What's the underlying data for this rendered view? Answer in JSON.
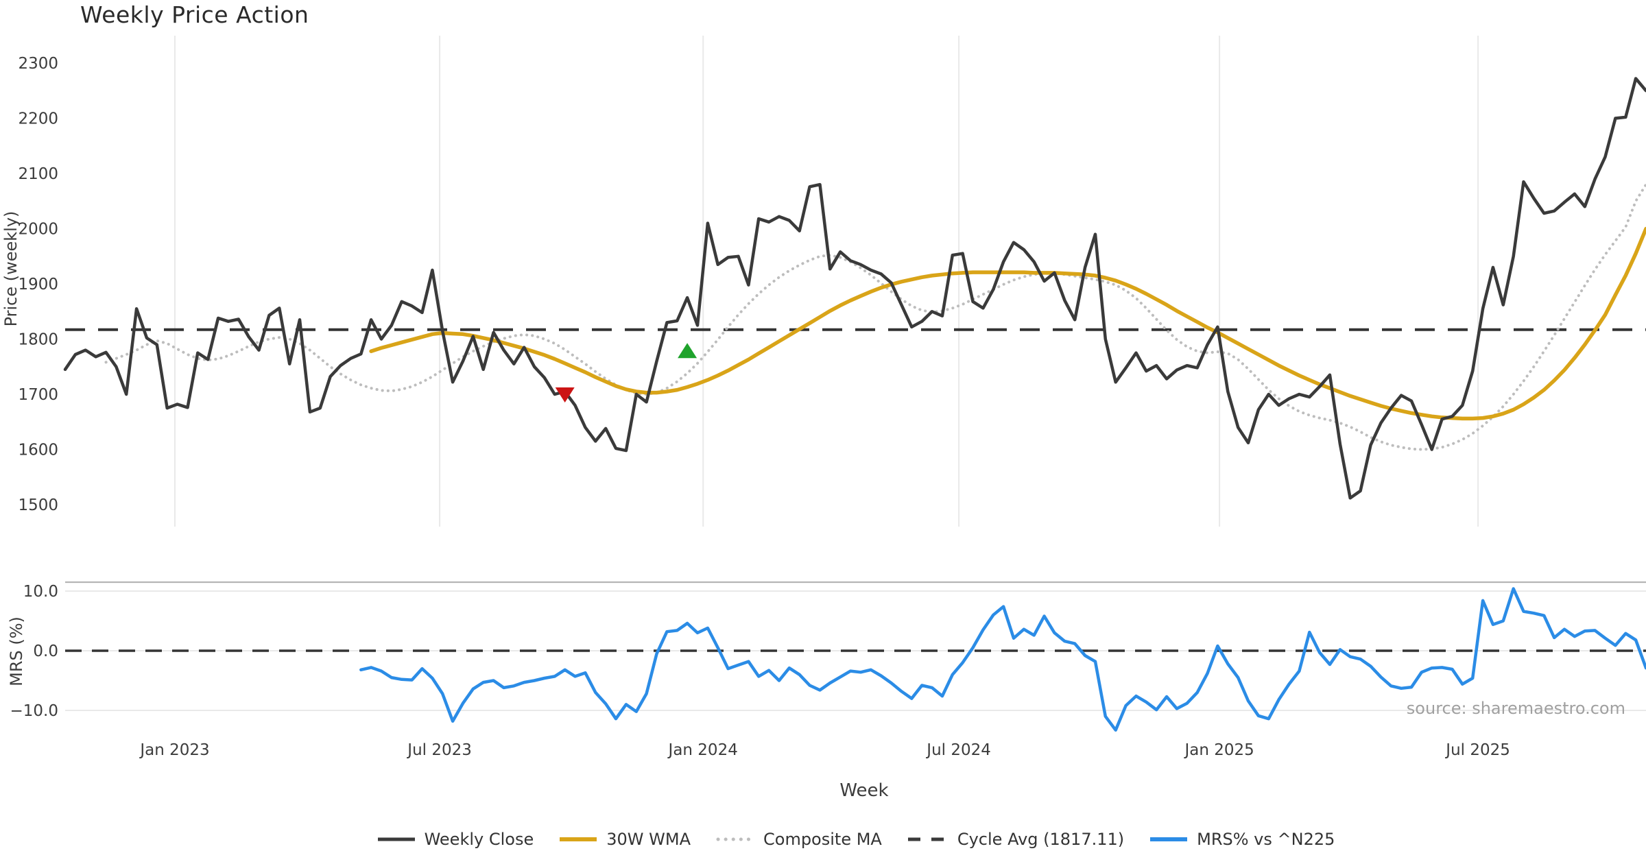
{
  "title": "Weekly Price Action",
  "axes": {
    "price_label": "Price (weekly)",
    "mrs_label": "MRS (%)",
    "week_label": "Week"
  },
  "source": "source: sharemaestro.com",
  "legend": {
    "items": [
      {
        "label": "Weekly Close",
        "color": "#3A3A3A",
        "style": "solid"
      },
      {
        "label": "30W WMA",
        "color": "#D9A418",
        "style": "solid"
      },
      {
        "label": "Composite MA",
        "color": "#BDBDBD",
        "style": "dotted"
      },
      {
        "label": "Cycle Avg (1817.11)",
        "color": "#3A3A3A",
        "style": "dashed"
      },
      {
        "label": "MRS% vs ^N225",
        "color": "#2B8CE6",
        "style": "solid"
      }
    ]
  },
  "chart_data": {
    "type": "line",
    "title": "Weekly Price Action",
    "x": {
      "label": "Week",
      "total_weeks": 156,
      "ticks": [
        {
          "label": "Jan 2023",
          "week": 10.76
        },
        {
          "label": "Jul 2023",
          "week": 36.72
        },
        {
          "label": "Jan 2024",
          "week": 62.55
        },
        {
          "label": "Jul 2024",
          "week": 87.63
        },
        {
          "label": "Jan 2025",
          "week": 113.18
        },
        {
          "label": "Jul 2025",
          "week": 138.53
        }
      ]
    },
    "price_panel": {
      "ylabel": "Price (weekly)",
      "ylim": [
        1457,
        2346
      ],
      "yticks": [
        1500,
        1600,
        1700,
        1800,
        1900,
        2000,
        2100,
        2200,
        2300
      ],
      "cycle_avg": 1817.11,
      "series": [
        {
          "name": "Weekly Close",
          "color": "#3A3A3A",
          "style": "solid",
          "width": 4.5,
          "start_week": 0,
          "values": [
            1745,
            1772,
            1780,
            1768,
            1776,
            1750,
            1700,
            1855,
            1802,
            1790,
            1675,
            1682,
            1676,
            1775,
            1763,
            1838,
            1832,
            1836,
            1804,
            1780,
            1843,
            1856,
            1755,
            1835,
            1668,
            1675,
            1732,
            1752,
            1765,
            1773,
            1835,
            1800,
            1825,
            1868,
            1860,
            1848,
            1925,
            1815,
            1722,
            1760,
            1805,
            1745,
            1812,
            1780,
            1755,
            1785,
            1750,
            1730,
            1700,
            1705,
            1680,
            1640,
            1615,
            1638,
            1602,
            1598,
            1700,
            1686,
            1760,
            1830,
            1833,
            1875,
            1825,
            2010,
            1935,
            1948,
            1950,
            1898,
            2018,
            2012,
            2022,
            2015,
            1996,
            2076,
            2080,
            1927,
            1958,
            1942,
            1935,
            1925,
            1918,
            1902,
            1862,
            1822,
            1832,
            1850,
            1842,
            1952,
            1955,
            1868,
            1856,
            1890,
            1940,
            1975,
            1962,
            1940,
            1905,
            1920,
            1870,
            1835,
            1930,
            1990,
            1800,
            1722,
            1748,
            1775,
            1742,
            1752,
            1728,
            1744,
            1752,
            1748,
            1790,
            1822,
            1705,
            1640,
            1612,
            1672,
            1700,
            1680,
            1692,
            1700,
            1695,
            1714,
            1735,
            1610,
            1512,
            1525,
            1608,
            1648,
            1675,
            1698,
            1688,
            1645,
            1600,
            1655,
            1660,
            1680,
            1742,
            1855,
            1930,
            1862,
            1950,
            2085,
            2055,
            2028,
            2032,
            2048,
            2063,
            2040,
            2090,
            2130,
            2200,
            2202,
            2272,
            2250
          ]
        },
        {
          "name": "30W WMA",
          "color": "#D9A418",
          "style": "solid",
          "width": 5.5,
          "start_week": 30,
          "values": [
            1778,
            1784,
            1789,
            1794,
            1799,
            1804,
            1809,
            1811,
            1810,
            1809,
            1806,
            1802,
            1798,
            1793,
            1788,
            1783,
            1777,
            1771,
            1764,
            1756,
            1748,
            1740,
            1731,
            1723,
            1715,
            1709,
            1705,
            1703,
            1703,
            1705,
            1708,
            1713,
            1719,
            1726,
            1734,
            1743,
            1753,
            1763,
            1774,
            1785,
            1796,
            1807,
            1818,
            1829,
            1840,
            1851,
            1861,
            1870,
            1878,
            1886,
            1893,
            1899,
            1904,
            1908,
            1912,
            1915,
            1917,
            1919,
            1920,
            1921,
            1921,
            1921,
            1921,
            1921,
            1921,
            1920,
            1920,
            1920,
            1919,
            1918,
            1917,
            1915,
            1911,
            1906,
            1899,
            1891,
            1882,
            1872,
            1862,
            1851,
            1841,
            1831,
            1821,
            1812,
            1802,
            1792,
            1782,
            1772,
            1762,
            1752,
            1743,
            1734,
            1726,
            1718,
            1711,
            1704,
            1697,
            1691,
            1685,
            1679,
            1674,
            1670,
            1666,
            1663,
            1660,
            1658,
            1657,
            1656,
            1656,
            1657,
            1660,
            1665,
            1672,
            1682,
            1694,
            1708,
            1725,
            1744,
            1766,
            1790,
            1816,
            1844,
            1880,
            1915,
            1955,
            2000
          ]
        },
        {
          "name": "Composite MA",
          "color": "#BDBDBD",
          "style": "dotted",
          "width": 4,
          "start_week": 4,
          "values": [
            1758,
            1765,
            1772,
            1780,
            1790,
            1797,
            1792,
            1782,
            1772,
            1765,
            1762,
            1764,
            1770,
            1778,
            1787,
            1795,
            1800,
            1803,
            1800,
            1792,
            1780,
            1765,
            1750,
            1737,
            1726,
            1717,
            1711,
            1707,
            1706,
            1709,
            1714,
            1722,
            1732,
            1744,
            1756,
            1768,
            1778,
            1787,
            1795,
            1801,
            1806,
            1808,
            1806,
            1800,
            1792,
            1781,
            1768,
            1755,
            1741,
            1728,
            1717,
            1708,
            1702,
            1700,
            1703,
            1711,
            1723,
            1738,
            1756,
            1777,
            1799,
            1822,
            1844,
            1864,
            1882,
            1898,
            1912,
            1924,
            1934,
            1943,
            1950,
            1952,
            1948,
            1940,
            1929,
            1916,
            1901,
            1886,
            1872,
            1860,
            1852,
            1849,
            1851,
            1856,
            1863,
            1872,
            1881,
            1890,
            1899,
            1907,
            1913,
            1917,
            1919,
            1919,
            1917,
            1914,
            1911,
            1908,
            1904,
            1898,
            1888,
            1874,
            1856,
            1836,
            1816,
            1799,
            1786,
            1778,
            1775,
            1777,
            1774,
            1763,
            1746,
            1727,
            1708,
            1692,
            1679,
            1669,
            1662,
            1657,
            1653,
            1648,
            1641,
            1632,
            1622,
            1614,
            1608,
            1604,
            1601,
            1600,
            1601,
            1604,
            1610,
            1618,
            1629,
            1643,
            1659,
            1678,
            1700,
            1724,
            1750,
            1778,
            1807,
            1837,
            1867,
            1897,
            1926,
            1953,
            1978,
            2003,
            2050,
            2080
          ]
        }
      ],
      "markers": [
        {
          "name": "sell-signal",
          "shape": "triangle-down",
          "color": "#CC1414",
          "week": 49,
          "price": 1700
        },
        {
          "name": "buy-signal",
          "shape": "triangle-up",
          "color": "#1FA32C",
          "week": 61,
          "price": 1778
        }
      ]
    },
    "mrs_panel": {
      "ylabel": "MRS (%)",
      "ylim": [
        -13.9,
        11.5
      ],
      "yticks": [
        {
          "v": 10,
          "label": "10.0"
        },
        {
          "v": 0,
          "label": "0.0"
        },
        {
          "v": -10,
          "label": "−10.0"
        }
      ],
      "zero_line_dashed": true,
      "series": [
        {
          "name": "MRS% vs ^N225",
          "color": "#2B8CE6",
          "style": "solid",
          "width": 4.5,
          "start_week": 29,
          "values": [
            -3.2,
            -2.8,
            -3.4,
            -4.5,
            -4.8,
            -4.9,
            -3.0,
            -4.6,
            -7.2,
            -11.8,
            -8.8,
            -6.4,
            -5.3,
            -5.0,
            -6.2,
            -5.9,
            -5.3,
            -5.0,
            -4.6,
            -4.3,
            -3.2,
            -4.3,
            -3.7,
            -7.0,
            -8.9,
            -11.4,
            -9.0,
            -10.2,
            -7.2,
            -0.5,
            3.2,
            3.4,
            4.6,
            3.0,
            3.8,
            0.5,
            -3.0,
            -2.4,
            -1.8,
            -4.3,
            -3.3,
            -5.0,
            -2.9,
            -4.0,
            -5.8,
            -6.6,
            -5.4,
            -4.4,
            -3.4,
            -3.6,
            -3.2,
            -4.2,
            -5.4,
            -6.8,
            -8.0,
            -5.8,
            -6.2,
            -7.6,
            -4.0,
            -2.0,
            0.5,
            3.5,
            6.0,
            7.4,
            2.1,
            3.6,
            2.6,
            5.8,
            3.0,
            1.6,
            1.2,
            -0.8,
            -1.8,
            -11.0,
            -13.3,
            -9.2,
            -7.6,
            -8.6,
            -9.9,
            -7.7,
            -9.7,
            -8.8,
            -7.0,
            -3.8,
            0.8,
            -2.2,
            -4.5,
            -8.4,
            -10.9,
            -11.4,
            -8.2,
            -5.6,
            -3.4,
            3.1,
            -0.3,
            -2.3,
            0.2,
            -1.0,
            -1.4,
            -2.6,
            -4.4,
            -5.9,
            -6.3,
            -6.1,
            -3.6,
            -2.9,
            -2.8,
            -3.1,
            -5.6,
            -4.6,
            8.4,
            4.4,
            5.0,
            10.4,
            6.6,
            6.3,
            5.9,
            2.2,
            3.6,
            2.4,
            3.3,
            3.4,
            2.1,
            0.9,
            2.9,
            1.8,
            -2.9
          ]
        }
      ]
    },
    "colors": {
      "grid": "#E9E9E9",
      "grid_strong": "#B5B5B5",
      "tick_text": "#3c3c3c",
      "cycle_dash": "#333333",
      "zero_dash": "#333333"
    },
    "layout": {
      "grid_on": true,
      "legend_position": "bottom"
    }
  }
}
